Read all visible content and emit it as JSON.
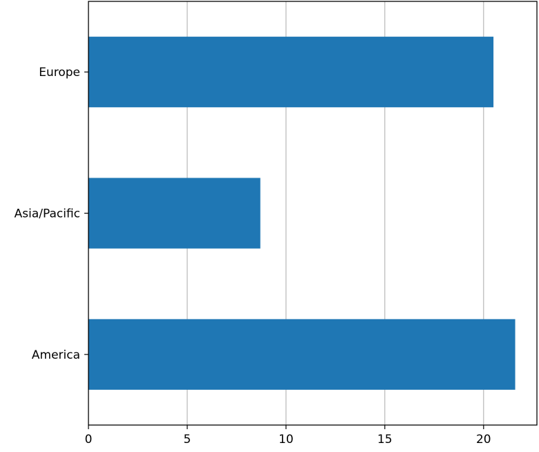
{
  "chart_data": {
    "type": "bar",
    "orientation": "horizontal",
    "categories": [
      "America",
      "Asia/Pacific",
      "Europe"
    ],
    "values": [
      21.6,
      8.7,
      20.5
    ],
    "title": "",
    "xlabel": "",
    "ylabel": "",
    "xlim": [
      0,
      22.7
    ],
    "xticks": [
      0,
      5,
      10,
      15,
      20
    ],
    "xtick_labels": [
      "0",
      "5",
      "10",
      "15",
      "20"
    ],
    "grid": "vertical",
    "bar_color": "#1f77b4",
    "grid_color": "#b0b0b0"
  }
}
